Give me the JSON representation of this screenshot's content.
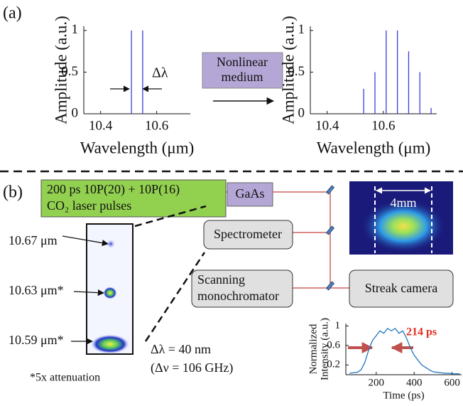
{
  "chart_data": [
    {
      "type": "bar",
      "x_label": "Wavelength (μm)",
      "y_label": "Amplitude (a.u.)",
      "x": [
        10.51,
        10.55
      ],
      "values": [
        1,
        1
      ],
      "color": "#3b3be0",
      "xlim": [
        10.34,
        10.72
      ],
      "ylim": [
        0,
        1.05
      ],
      "xticks": [
        10.4,
        10.6
      ],
      "yticks": [
        0,
        0.5,
        1
      ],
      "annotation": "Δλ"
    },
    {
      "type": "bar",
      "x_label": "Wavelength (μm)",
      "y_label": "Amplitude (a.u.)",
      "x": [
        10.53,
        10.57,
        10.61,
        10.65,
        10.69,
        10.73,
        10.77
      ],
      "values": [
        0.3,
        0.5,
        1,
        1,
        0.75,
        0.5,
        0.07
      ],
      "color": "#3b3be0",
      "xlim": [
        10.34,
        10.79
      ],
      "ylim": [
        0,
        1.05
      ],
      "xticks": [
        10.4,
        10.6
      ],
      "yticks": [
        0,
        0.5,
        1
      ]
    },
    {
      "type": "line",
      "x_label": "Time (ps)",
      "y_label": [
        "Normalized",
        "Intensity (a.u.)"
      ],
      "x": [
        60,
        80,
        100,
        120,
        140,
        160,
        180,
        200,
        220,
        240,
        260,
        280,
        300,
        320,
        340,
        360,
        380,
        400,
        420,
        440,
        460,
        480,
        500,
        520,
        540,
        560,
        580,
        600,
        620,
        640
      ],
      "values": [
        0.03,
        0.04,
        0.05,
        0.1,
        0.25,
        0.5,
        0.7,
        0.8,
        0.9,
        0.85,
        0.95,
        0.9,
        0.95,
        0.85,
        0.9,
        0.75,
        0.55,
        0.4,
        0.3,
        0.2,
        0.15,
        0.1,
        0.06,
        0.05,
        0.04,
        0.03,
        0.03,
        0.02,
        0.02,
        0.02
      ],
      "color": "#1f77c4",
      "xlim": [
        40,
        650
      ],
      "ylim": [
        0,
        1.05
      ],
      "xticks": [
        200,
        400,
        600
      ],
      "yticks": [
        0.2,
        0.6,
        1
      ],
      "annotation": "214 ps"
    }
  ],
  "diagram": {
    "panel_a": "(a)",
    "panel_b": "(b)",
    "nonlinear": [
      "Nonlinear",
      "medium"
    ],
    "laser": [
      "200 ps 10P(20) + 10P(16)",
      "CO₂ laser pulses"
    ],
    "gaas": "GaAs",
    "spectrometer": "Spectrometer",
    "monochromator": [
      "Scanning",
      "monochromator"
    ],
    "streak": "Streak camera",
    "size": "4mm",
    "lines": [
      "10.67 μm",
      "10.63 μm*",
      "10.59 μm*"
    ],
    "attenuation": "*5x attenuation",
    "dlambda": "Δλ = 40 nm",
    "dnu": "(Δν = 106 GHz)"
  }
}
